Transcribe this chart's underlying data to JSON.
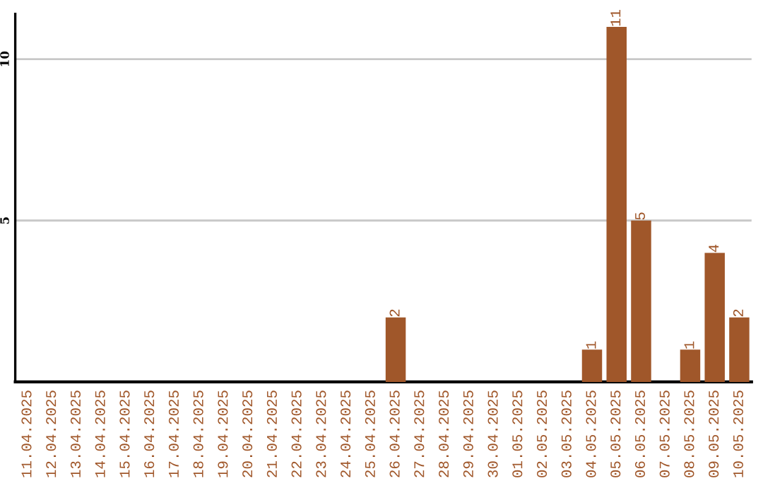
{
  "chart_data": {
    "type": "bar",
    "categories": [
      "11.04.2025",
      "12.04.2025",
      "13.04.2025",
      "14.04.2025",
      "15.04.2025",
      "16.04.2025",
      "17.04.2025",
      "18.04.2025",
      "19.04.2025",
      "20.04.2025",
      "21.04.2025",
      "22.04.2025",
      "23.04.2025",
      "24.04.2025",
      "25.04.2025",
      "26.04.2025",
      "27.04.2025",
      "28.04.2025",
      "29.04.2025",
      "30.04.2025",
      "01.05.2025",
      "02.05.2025",
      "03.05.2025",
      "04.05.2025",
      "05.05.2025",
      "06.05.2025",
      "07.05.2025",
      "08.05.2025",
      "09.05.2025",
      "10.05.2025"
    ],
    "values": [
      0,
      0,
      0,
      0,
      0,
      0,
      0,
      0,
      0,
      0,
      0,
      0,
      0,
      0,
      0,
      2,
      0,
      0,
      0,
      0,
      0,
      0,
      0,
      1,
      11,
      5,
      0,
      1,
      4,
      2
    ],
    "value_labels": [
      null,
      null,
      null,
      null,
      null,
      null,
      null,
      null,
      null,
      null,
      null,
      null,
      null,
      null,
      null,
      "2",
      null,
      null,
      null,
      null,
      null,
      null,
      null,
      "1",
      "11",
      "5",
      null,
      "1",
      "4",
      "2"
    ],
    "color": "#a0572a",
    "ylim": [
      0,
      11.4
    ],
    "yticks": [
      5,
      10
    ],
    "grid": "y",
    "legend": false
  }
}
